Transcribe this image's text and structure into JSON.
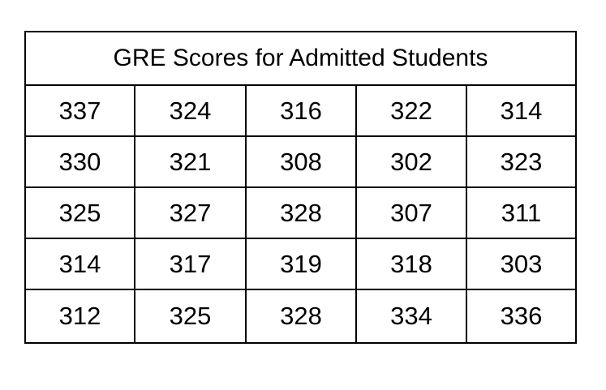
{
  "table": {
    "title": "GRE Scores for Admitted Students",
    "rows": [
      [
        "337",
        "324",
        "316",
        "322",
        "314"
      ],
      [
        "330",
        "321",
        "308",
        "302",
        "323"
      ],
      [
        "325",
        "327",
        "328",
        "307",
        "311"
      ],
      [
        "314",
        "317",
        "319",
        "318",
        "303"
      ],
      [
        "312",
        "325",
        "328",
        "334",
        "336"
      ]
    ]
  }
}
